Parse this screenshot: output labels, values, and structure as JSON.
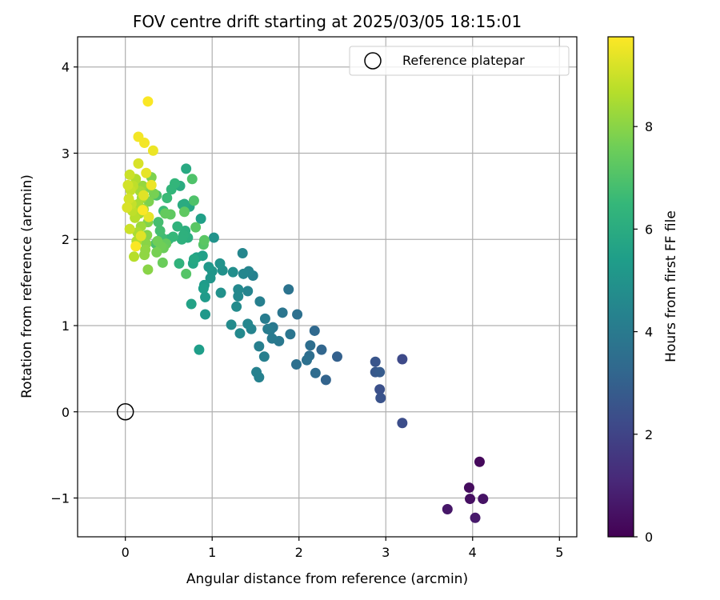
{
  "chart_data": {
    "type": "scatter",
    "title": "FOV centre drift starting at 2025/03/05 18:15:01",
    "xlabel": "Angular distance from reference (arcmin)",
    "ylabel": "Rotation from reference (arcmin)",
    "xlim": [
      -0.55,
      5.2
    ],
    "ylim": [
      -1.45,
      4.35
    ],
    "xticks": [
      0,
      1,
      2,
      3,
      4,
      5
    ],
    "yticks": [
      -1,
      0,
      1,
      2,
      3,
      4
    ],
    "xtick_labels": [
      "0",
      "1",
      "2",
      "3",
      "4",
      "5"
    ],
    "ytick_labels": [
      "−1",
      "0",
      "1",
      "2",
      "3",
      "4"
    ],
    "grid": true,
    "legend": {
      "position": "top-right",
      "entries": [
        "Reference platepar"
      ]
    },
    "reference_point": {
      "x": 0,
      "y": 0,
      "marker": "open-circle",
      "color": "#000000"
    },
    "colorbar": {
      "label": "Hours from first FF file",
      "range": [
        0,
        9.75
      ],
      "ticks": [
        0,
        2,
        4,
        6,
        8
      ],
      "tick_labels": [
        "0",
        "2",
        "4",
        "6",
        "8"
      ],
      "colormap": "viridis"
    },
    "colormap_stops": [
      "#440154",
      "#482878",
      "#3e4989",
      "#31688e",
      "#26828e",
      "#1f9e89",
      "#35b779",
      "#6ece58",
      "#b5de2b",
      "#fde725"
    ],
    "points": [
      [
        4.08,
        -0.58,
        0.2
      ],
      [
        3.96,
        -0.88,
        0.3
      ],
      [
        3.97,
        -1.01,
        0.4
      ],
      [
        4.12,
        -1.01,
        0.5
      ],
      [
        3.71,
        -1.13,
        0.6
      ],
      [
        4.03,
        -1.23,
        0.7
      ],
      [
        3.19,
        0.61,
        2.2
      ],
      [
        3.19,
        -0.13,
        2.3
      ],
      [
        2.93,
        0.26,
        2.4
      ],
      [
        2.94,
        0.16,
        2.5
      ],
      [
        2.88,
        0.58,
        2.6
      ],
      [
        2.88,
        0.46,
        2.7
      ],
      [
        2.93,
        0.46,
        2.8
      ],
      [
        2.44,
        0.64,
        3.0
      ],
      [
        2.31,
        0.37,
        3.1
      ],
      [
        2.26,
        0.72,
        3.2
      ],
      [
        2.18,
        0.94,
        3.3
      ],
      [
        2.19,
        0.45,
        3.4
      ],
      [
        2.13,
        0.77,
        3.5
      ],
      [
        2.12,
        0.65,
        3.5
      ],
      [
        2.09,
        0.6,
        3.6
      ],
      [
        1.97,
        0.55,
        3.6
      ],
      [
        1.98,
        1.13,
        3.6
      ],
      [
        1.88,
        1.42,
        3.7
      ],
      [
        1.9,
        0.9,
        3.8
      ],
      [
        1.81,
        1.15,
        3.8
      ],
      [
        1.77,
        0.82,
        3.9
      ],
      [
        1.7,
        0.98,
        3.9
      ],
      [
        1.67,
        0.95,
        4.0
      ],
      [
        1.69,
        0.85,
        4.0
      ],
      [
        1.61,
        1.08,
        4.1
      ],
      [
        1.64,
        0.96,
        4.1
      ],
      [
        1.6,
        0.64,
        4.2
      ],
      [
        1.54,
        0.76,
        4.2
      ],
      [
        1.55,
        1.28,
        4.2
      ],
      [
        1.54,
        0.4,
        4.3
      ],
      [
        1.51,
        0.46,
        4.3
      ],
      [
        1.47,
        1.58,
        4.3
      ],
      [
        1.42,
        1.63,
        4.4
      ],
      [
        1.41,
        1.4,
        4.4
      ],
      [
        1.45,
        0.96,
        4.4
      ],
      [
        1.41,
        1.02,
        4.5
      ],
      [
        1.35,
        1.84,
        4.5
      ],
      [
        1.36,
        1.6,
        4.5
      ],
      [
        1.32,
        0.91,
        4.6
      ],
      [
        1.3,
        1.42,
        4.6
      ],
      [
        1.3,
        1.34,
        4.6
      ],
      [
        1.28,
        1.22,
        4.7
      ],
      [
        1.22,
        1.01,
        4.7
      ],
      [
        1.24,
        1.62,
        4.8
      ],
      [
        1.12,
        1.64,
        4.9
      ],
      [
        1.1,
        1.38,
        4.9
      ],
      [
        1.09,
        1.72,
        5.0
      ],
      [
        1.02,
        2.02,
        5.0
      ],
      [
        1.0,
        1.63,
        5.1
      ],
      [
        0.98,
        1.55,
        5.1
      ],
      [
        0.96,
        1.68,
        5.2
      ],
      [
        0.92,
        1.13,
        5.2
      ],
      [
        0.92,
        1.33,
        5.3
      ],
      [
        0.91,
        1.47,
        5.3
      ],
      [
        0.9,
        1.43,
        5.4
      ],
      [
        0.85,
        0.72,
        5.4
      ],
      [
        0.89,
        1.81,
        5.5
      ],
      [
        0.87,
        2.24,
        5.5
      ],
      [
        0.76,
        1.25,
        5.6
      ],
      [
        0.82,
        1.79,
        5.6
      ],
      [
        0.78,
        1.72,
        5.7
      ],
      [
        0.79,
        1.77,
        5.8
      ],
      [
        0.74,
        2.38,
        5.8
      ],
      [
        0.7,
        2.82,
        5.9
      ],
      [
        0.68,
        2.41,
        6.0
      ],
      [
        0.66,
        2.4,
        6.0
      ],
      [
        0.63,
        2.62,
        6.0
      ],
      [
        0.69,
        2.1,
        6.1
      ],
      [
        0.72,
        2.02,
        6.1
      ],
      [
        0.67,
        2.05,
        6.2
      ],
      [
        0.65,
        2.0,
        6.2
      ],
      [
        0.6,
        2.15,
        6.3
      ],
      [
        0.62,
        1.72,
        6.3
      ],
      [
        0.57,
        2.65,
        6.4
      ],
      [
        0.53,
        2.58,
        6.4
      ],
      [
        0.55,
        2.03,
        6.5
      ],
      [
        0.5,
        2.0,
        6.5
      ],
      [
        0.48,
        2.48,
        6.6
      ],
      [
        0.44,
        2.33,
        6.6
      ],
      [
        0.42,
        2.02,
        6.7
      ],
      [
        0.4,
        2.1,
        6.8
      ],
      [
        0.38,
        2.2,
        6.8
      ],
      [
        0.36,
        2.51,
        6.9
      ],
      [
        0.35,
        1.95,
        6.9
      ],
      [
        0.77,
        2.7,
        7.0
      ],
      [
        0.79,
        2.45,
        7.0
      ],
      [
        0.7,
        1.6,
        7.1
      ],
      [
        0.9,
        1.94,
        7.1
      ],
      [
        0.91,
        1.99,
        7.2
      ],
      [
        0.81,
        2.14,
        7.2
      ],
      [
        0.68,
        2.32,
        7.3
      ],
      [
        0.52,
        2.29,
        7.3
      ],
      [
        0.46,
        2.3,
        7.4
      ],
      [
        0.47,
        1.95,
        7.4
      ],
      [
        0.44,
        1.9,
        7.5
      ],
      [
        0.43,
        1.73,
        7.5
      ],
      [
        0.41,
        1.92,
        7.6
      ],
      [
        0.37,
        1.98,
        7.6
      ],
      [
        0.36,
        1.85,
        7.7
      ],
      [
        0.33,
        2.53,
        7.7
      ],
      [
        0.3,
        2.72,
        7.8
      ],
      [
        0.28,
        2.6,
        7.8
      ],
      [
        0.27,
        2.44,
        7.8
      ],
      [
        0.26,
        2.2,
        7.9
      ],
      [
        0.25,
        2.05,
        7.9
      ],
      [
        0.24,
        1.95,
        8.0
      ],
      [
        0.26,
        1.65,
        8.0
      ],
      [
        0.23,
        1.88,
        8.1
      ],
      [
        0.22,
        1.82,
        8.1
      ],
      [
        0.21,
        2.35,
        8.2
      ],
      [
        0.2,
        2.62,
        8.2
      ],
      [
        0.19,
        2.48,
        8.3
      ],
      [
        0.18,
        2.15,
        8.3
      ],
      [
        0.17,
        2.56,
        8.4
      ],
      [
        0.16,
        2.3,
        8.4
      ],
      [
        0.15,
        2.41,
        8.5
      ],
      [
        0.14,
        2.08,
        8.5
      ],
      [
        0.13,
        1.98,
        8.6
      ],
      [
        0.12,
        2.7,
        8.6
      ],
      [
        0.11,
        2.25,
        8.7
      ],
      [
        0.1,
        1.8,
        8.7
      ],
      [
        0.09,
        2.62,
        8.8
      ],
      [
        0.08,
        2.33,
        8.8
      ],
      [
        0.07,
        2.41,
        8.9
      ],
      [
        0.06,
        2.57,
        8.9
      ],
      [
        0.05,
        2.12,
        9.0
      ],
      [
        0.05,
        2.75,
        9.0
      ],
      [
        0.04,
        2.47,
        9.1
      ],
      [
        0.03,
        2.63,
        9.1
      ],
      [
        0.02,
        2.37,
        9.2
      ],
      [
        0.15,
        2.88,
        9.2
      ],
      [
        0.18,
        2.04,
        9.3
      ],
      [
        0.21,
        2.51,
        9.3
      ],
      [
        0.24,
        2.77,
        9.4
      ],
      [
        0.27,
        2.26,
        9.4
      ],
      [
        0.3,
        2.63,
        9.5
      ],
      [
        0.32,
        3.03,
        9.5
      ],
      [
        0.22,
        3.12,
        9.6
      ],
      [
        0.15,
        3.19,
        9.6
      ],
      [
        0.26,
        3.6,
        9.7
      ],
      [
        0.12,
        1.92,
        9.7
      ],
      [
        0.2,
        2.34,
        9.7
      ]
    ]
  }
}
